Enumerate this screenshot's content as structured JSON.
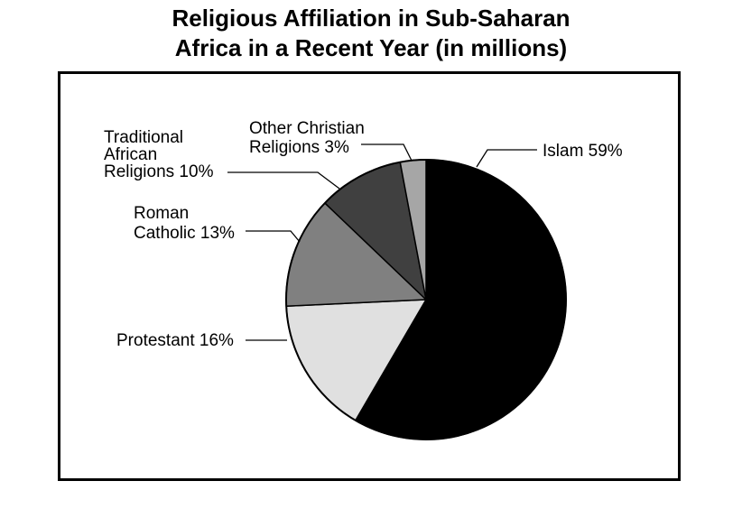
{
  "chart_data": {
    "type": "pie",
    "title_lines": [
      "Religious Affiliation in Sub-Saharan",
      "Africa in a Recent Year (in millions)"
    ],
    "slices": [
      {
        "key": "islam",
        "label_lines": [
          "Islam 59%"
        ],
        "value": 59,
        "color": "#000000"
      },
      {
        "key": "protestant",
        "label_lines": [
          "Protestant 16%"
        ],
        "value": 16,
        "color": "#e0e0e0"
      },
      {
        "key": "roman-catholic",
        "label_lines": [
          "Roman",
          "Catholic 13%"
        ],
        "value": 13,
        "color": "#808080"
      },
      {
        "key": "traditional-african",
        "label_lines": [
          "Traditional",
          "African",
          "Religions 10%"
        ],
        "value": 10,
        "color": "#404040"
      },
      {
        "key": "other-christian",
        "label_lines": [
          "Other Christian",
          "Religions 3%"
        ],
        "value": 3,
        "color": "#a6a6a6"
      }
    ],
    "start": "12 o'clock",
    "direction": "clockwise"
  }
}
